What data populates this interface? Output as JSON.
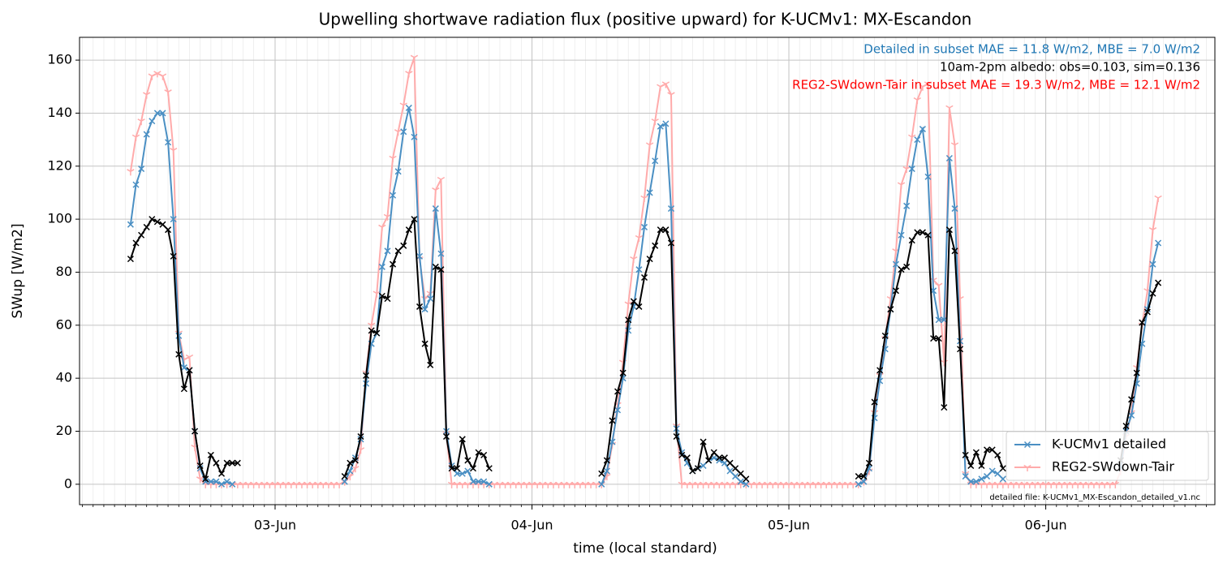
{
  "chart_data": {
    "type": "line",
    "title": "Upwelling shortwave radiation flux (positive upward) for K-UCMv1: MX-Escandon",
    "xlabel": "time (local standard)",
    "ylabel": "SWup [W/m2]",
    "x": [
      10.5,
      11,
      11.5,
      12,
      12.5,
      13,
      13.5,
      14,
      14.5,
      15,
      15.5,
      16,
      16.5,
      17,
      17.5,
      18,
      18.5,
      19,
      19.5,
      20,
      20.5,
      21,
      21.5,
      22,
      22.5,
      23,
      23.5,
      24,
      24.5,
      25,
      25.5,
      26,
      26.5,
      27,
      27.5,
      28,
      28.5,
      29,
      29.5,
      30,
      30.5,
      31,
      31.5,
      32,
      32.5,
      33,
      33.5,
      34,
      34.5,
      35,
      35.5,
      36,
      36.5,
      37,
      37.5,
      38,
      38.5,
      39,
      39.5,
      40,
      40.5,
      41,
      41.5,
      42,
      42.5,
      43,
      43.5,
      44,
      44.5,
      45,
      45.5,
      46,
      46.5,
      47,
      47.5,
      48,
      48.5,
      49,
      49.5,
      50,
      50.5,
      51,
      51.5,
      52,
      52.5,
      53,
      53.5,
      54,
      54.5,
      55,
      55.5,
      56,
      56.5,
      57,
      57.5,
      58,
      58.5,
      59,
      59.5,
      60,
      60.5,
      61,
      61.5,
      62,
      62.5,
      63,
      63.5,
      64,
      64.5,
      65,
      65.5,
      66,
      66.5,
      67,
      67.5,
      68,
      68.5,
      69,
      69.5,
      70,
      70.5,
      71,
      71.5,
      72,
      72.5,
      73,
      73.5,
      74,
      74.5,
      75,
      75.5,
      76,
      76.5,
      77,
      77.5,
      78,
      78.5,
      79,
      79.5,
      80,
      80.5,
      81,
      81.5,
      82,
      82.5,
      83,
      83.5,
      84,
      84.5,
      85,
      85.5,
      86,
      86.5,
      87,
      87.5,
      88,
      88.5,
      89,
      89.5,
      90,
      90.5,
      91,
      91.5,
      92,
      92.5,
      93,
      93.5,
      94,
      94.5,
      95,
      95.5,
      96,
      96.5,
      97,
      97.5,
      98,
      98.5,
      99,
      99.5,
      100,
      100.5,
      101,
      101.5,
      102,
      102.5,
      103,
      103.5,
      104,
      104.5,
      105,
      105.5,
      106,
      106.5
    ],
    "series": [
      {
        "name": "K-UCMv1 detailed",
        "color": "#4a8fc3",
        "marker": "x",
        "values": [
          98,
          113,
          119,
          132,
          137,
          140,
          140,
          129,
          100,
          56,
          44,
          43,
          20,
          6,
          1,
          1,
          1,
          0,
          1,
          0,
          null,
          null,
          null,
          null,
          null,
          null,
          null,
          null,
          null,
          null,
          null,
          null,
          null,
          null,
          null,
          null,
          null,
          null,
          null,
          null,
          1,
          5,
          10,
          17,
          38,
          53,
          57,
          82,
          88,
          109,
          118,
          133,
          142,
          131,
          86,
          66,
          70,
          104,
          87,
          20,
          7,
          4,
          4,
          5,
          1,
          1,
          1,
          0,
          null,
          null,
          null,
          null,
          null,
          null,
          null,
          null,
          null,
          null,
          null,
          null,
          null,
          null,
          null,
          null,
          null,
          null,
          null,
          null,
          0,
          5,
          16,
          28,
          40,
          58,
          67,
          81,
          97,
          110,
          122,
          135,
          136,
          104,
          21,
          12,
          8,
          5,
          6,
          7,
          9,
          10,
          9,
          8,
          5,
          3,
          1,
          0,
          null,
          null,
          null,
          null,
          null,
          null,
          null,
          null,
          null,
          null,
          null,
          null,
          null,
          null,
          null,
          null,
          null,
          null,
          null,
          null,
          0,
          1,
          6,
          25,
          39,
          51,
          66,
          83,
          94,
          105,
          119,
          130,
          134,
          116,
          73,
          62,
          62,
          123,
          104,
          54,
          3,
          1,
          1,
          2,
          3,
          5,
          4,
          2,
          null,
          null,
          null,
          null,
          null,
          null,
          null,
          null,
          null,
          null,
          null,
          null,
          null,
          null,
          null,
          null,
          null,
          null,
          null,
          null,
          null,
          6,
          20,
          26,
          38,
          53,
          66,
          83,
          91
        ]
      },
      {
        "name": "REG2-SWdown-Tair",
        "color": "#ffabab",
        "marker": "tri",
        "values": [
          118,
          131,
          137,
          147,
          154,
          155,
          154,
          148,
          126,
          57,
          47,
          48,
          14,
          2,
          0,
          0,
          0,
          0,
          0,
          0,
          0,
          0,
          0,
          0,
          0,
          0,
          0,
          0,
          0,
          0,
          0,
          0,
          0,
          0,
          0,
          0,
          0,
          0,
          0,
          0,
          1,
          3,
          6,
          13,
          42,
          60,
          72,
          97,
          101,
          123,
          133,
          143,
          155,
          161,
          85,
          70,
          72,
          111,
          115,
          19,
          0,
          0,
          0,
          0,
          0,
          0,
          0,
          0,
          0,
          0,
          0,
          0,
          0,
          0,
          0,
          0,
          0,
          0,
          0,
          0,
          0,
          0,
          0,
          0,
          0,
          0,
          0,
          0,
          0,
          3,
          15,
          30,
          46,
          68,
          85,
          93,
          108,
          128,
          137,
          150,
          151,
          147,
          22,
          0,
          0,
          0,
          0,
          0,
          0,
          0,
          0,
          0,
          0,
          0,
          0,
          0,
          0,
          0,
          0,
          0,
          0,
          0,
          0,
          0,
          0,
          0,
          0,
          0,
          0,
          0,
          0,
          0,
          0,
          0,
          0,
          0,
          0,
          1,
          5,
          27,
          41,
          55,
          70,
          88,
          113,
          119,
          131,
          145,
          150,
          151,
          77,
          75,
          46,
          142,
          128,
          70,
          4,
          0,
          0,
          0,
          0,
          0,
          0,
          0,
          0,
          0,
          0,
          0,
          0,
          0,
          0,
          0,
          0,
          0,
          0,
          0,
          0,
          0,
          0,
          0,
          0,
          0,
          0,
          0,
          0,
          5,
          18,
          27,
          44,
          60,
          73,
          96,
          108
        ]
      },
      {
        "color": "#000000",
        "marker": "x",
        "values": [
          85,
          91,
          94,
          97,
          100,
          99,
          98,
          96,
          86,
          49,
          36,
          43,
          20,
          7,
          2,
          11,
          8,
          4,
          8,
          8,
          8,
          null,
          null,
          null,
          null,
          null,
          null,
          null,
          null,
          null,
          null,
          null,
          null,
          null,
          null,
          null,
          null,
          null,
          null,
          null,
          3,
          8,
          9,
          18,
          41,
          58,
          57,
          71,
          70,
          83,
          88,
          90,
          96,
          100,
          67,
          53,
          45,
          82,
          81,
          18,
          6,
          6,
          17,
          9,
          6,
          12,
          11,
          6,
          null,
          null,
          null,
          null,
          null,
          null,
          null,
          null,
          null,
          null,
          null,
          null,
          null,
          null,
          null,
          null,
          null,
          null,
          null,
          null,
          4,
          9,
          24,
          35,
          42,
          62,
          69,
          67,
          78,
          85,
          90,
          96,
          96,
          91,
          18,
          11,
          10,
          5,
          6,
          16,
          9,
          12,
          10,
          10,
          8,
          6,
          4,
          2,
          null,
          null,
          null,
          null,
          null,
          null,
          null,
          null,
          null,
          null,
          null,
          null,
          null,
          null,
          null,
          null,
          null,
          null,
          null,
          null,
          3,
          3,
          8,
          31,
          43,
          56,
          66,
          73,
          81,
          82,
          92,
          95,
          95,
          94,
          55,
          55,
          29,
          96,
          88,
          51,
          11,
          7,
          12,
          7,
          13,
          13,
          11,
          6,
          null,
          null,
          null,
          null,
          null,
          null,
          null,
          null,
          null,
          null,
          null,
          null,
          null,
          null,
          null,
          null,
          null,
          null,
          null,
          null,
          null,
          9,
          22,
          32,
          42,
          61,
          65,
          72,
          76
        ]
      }
    ],
    "xlim": [
      5.73,
      111.8
    ],
    "xticks": [
      {
        "value": 24,
        "label": "03-Jun"
      },
      {
        "value": 48,
        "label": "04-Jun"
      },
      {
        "value": 72,
        "label": "05-Jun"
      },
      {
        "value": 96,
        "label": "06-Jun"
      }
    ],
    "ylim": [
      -7.7,
      168.6
    ],
    "yticks": [
      0,
      20,
      40,
      60,
      80,
      100,
      120,
      140,
      160
    ],
    "grid": true,
    "legend": "lower right",
    "annotations": [
      {
        "text": "Detailed in subset MAE = 11.8 W/m2, MBE = 7.0 W/m2",
        "color": "#1f77b4"
      },
      {
        "text": "10am-2pm albedo: obs=0.103, sim=0.136",
        "color": "#000000"
      },
      {
        "text": "REG2-SWdown-Tair in subset MAE = 19.3 W/m2, MBE = 12.1 W/m2",
        "color": "#ff0000"
      }
    ],
    "footnote": "detailed file: K-UCMv1_MX-Escandon_detailed_v1.nc"
  }
}
